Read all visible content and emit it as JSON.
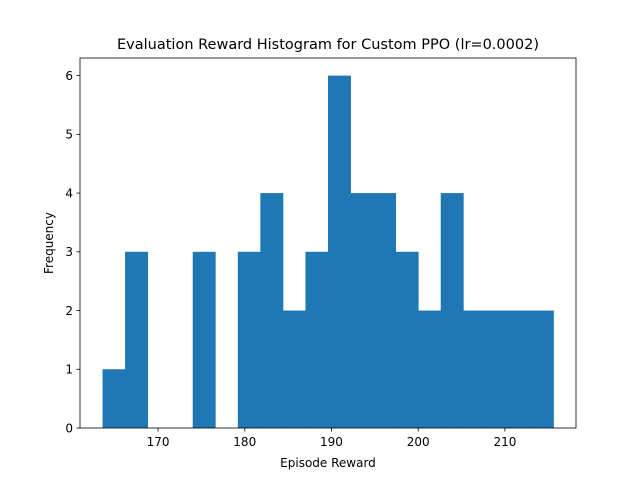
{
  "chart_data": {
    "type": "bar",
    "title": "Evaluation Reward Histogram for Custom PPO (lr=0.0002)",
    "xlabel": "Episode Reward",
    "ylabel": "Frequency",
    "bin_edges": [
      163.6,
      166.2,
      168.8,
      171.4,
      174.0,
      176.6,
      179.2,
      181.8,
      184.4,
      187.0,
      189.6,
      192.2,
      194.8,
      197.4,
      200.0,
      202.6,
      205.2,
      207.8,
      210.4,
      213.0,
      215.6
    ],
    "values": [
      1,
      3,
      0,
      0,
      3,
      0,
      3,
      4,
      2,
      3,
      6,
      4,
      4,
      3,
      2,
      4,
      2,
      2,
      2,
      2
    ],
    "xlim": [
      161.0,
      218.2
    ],
    "ylim": [
      0,
      6.3
    ],
    "xticks": [
      170,
      180,
      190,
      200,
      210
    ],
    "yticks": [
      0,
      1,
      2,
      3,
      4,
      5,
      6
    ],
    "bar_color": "#1f77b4",
    "grid": false,
    "legend": false
  }
}
